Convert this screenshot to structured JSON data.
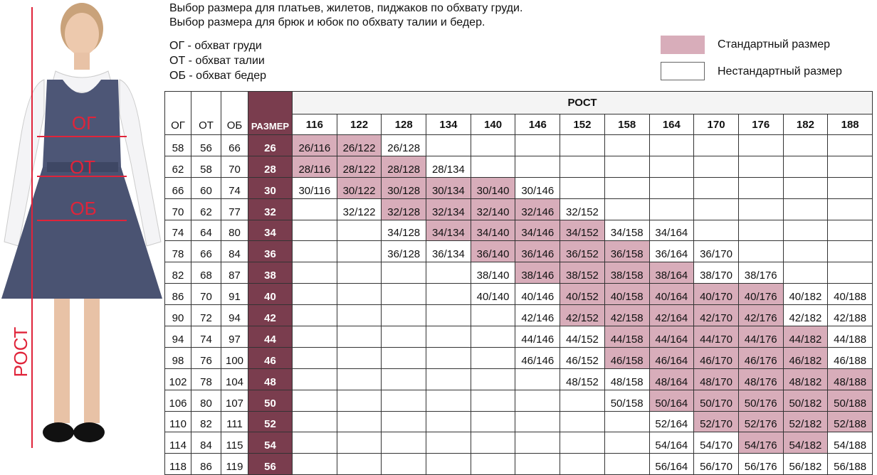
{
  "header": {
    "lines": [
      "Выбор размера для платьев, жилетов, пиджаков по обхвату груди.",
      "Выбор размера для брюк и юбок по обхвату талии и бедер."
    ],
    "abbreviations": [
      "ОГ - обхват груди",
      "ОТ - обхват талии",
      "ОБ - обхват бедер"
    ]
  },
  "legend": [
    {
      "label": "Стандартный размер",
      "color": "#d8adba"
    },
    {
      "label": "Нестандартный размер",
      "color": "#ffffff"
    }
  ],
  "figure_labels": {
    "chest": "ОГ",
    "waist": "ОТ",
    "hips": "ОБ",
    "height": "РОСТ"
  },
  "table": {
    "columns": [
      "ОГ",
      "ОТ",
      "ОБ",
      "РАЗМЕР"
    ],
    "size_color": "#7a3d4e",
    "height_title": "РОСТ",
    "heights": [
      "116",
      "122",
      "128",
      "134",
      "140",
      "146",
      "152",
      "158",
      "164",
      "170",
      "176",
      "182",
      "188"
    ],
    "rows": [
      {
        "measures": [
          "58",
          "56",
          "66"
        ],
        "size": "26",
        "cells": [
          {
            "label": "26/116",
            "standard": true
          },
          {
            "label": "26/122",
            "standard": true
          },
          {
            "label": "26/128",
            "standard": false
          },
          null,
          null,
          null,
          null,
          null,
          null,
          null,
          null,
          null,
          null
        ]
      },
      {
        "measures": [
          "62",
          "58",
          "70"
        ],
        "size": "28",
        "cells": [
          {
            "label": "28/116",
            "standard": true
          },
          {
            "label": "28/122",
            "standard": true
          },
          {
            "label": "28/128",
            "standard": true
          },
          {
            "label": "28/134",
            "standard": false
          },
          null,
          null,
          null,
          null,
          null,
          null,
          null,
          null,
          null
        ]
      },
      {
        "measures": [
          "66",
          "60",
          "74"
        ],
        "size": "30",
        "cells": [
          {
            "label": "30/116",
            "standard": false
          },
          {
            "label": "30/122",
            "standard": true
          },
          {
            "label": "30/128",
            "standard": true
          },
          {
            "label": "30/134",
            "standard": true
          },
          {
            "label": "30/140",
            "standard": true
          },
          {
            "label": "30/146",
            "standard": false
          },
          null,
          null,
          null,
          null,
          null,
          null,
          null
        ]
      },
      {
        "measures": [
          "70",
          "62",
          "77"
        ],
        "size": "32",
        "cells": [
          null,
          {
            "label": "32/122",
            "standard": false
          },
          {
            "label": "32/128",
            "standard": true
          },
          {
            "label": "32/134",
            "standard": true
          },
          {
            "label": "32/140",
            "standard": true
          },
          {
            "label": "32/146",
            "standard": true
          },
          {
            "label": "32/152",
            "standard": false
          },
          null,
          null,
          null,
          null,
          null,
          null
        ]
      },
      {
        "measures": [
          "74",
          "64",
          "80"
        ],
        "size": "34",
        "cells": [
          null,
          null,
          {
            "label": "34/128",
            "standard": false
          },
          {
            "label": "34/134",
            "standard": true
          },
          {
            "label": "34/140",
            "standard": true
          },
          {
            "label": "34/146",
            "standard": true
          },
          {
            "label": "34/152",
            "standard": true
          },
          {
            "label": "34/158",
            "standard": false
          },
          {
            "label": "34/164",
            "standard": false
          },
          null,
          null,
          null,
          null
        ]
      },
      {
        "measures": [
          "78",
          "66",
          "84"
        ],
        "size": "36",
        "cells": [
          null,
          null,
          {
            "label": "36/128",
            "standard": false
          },
          {
            "label": "36/134",
            "standard": false
          },
          {
            "label": "36/140",
            "standard": true
          },
          {
            "label": "36/146",
            "standard": true
          },
          {
            "label": "36/152",
            "standard": true
          },
          {
            "label": "36/158",
            "standard": true
          },
          {
            "label": "36/164",
            "standard": false
          },
          {
            "label": "36/170",
            "standard": false
          },
          null,
          null,
          null
        ]
      },
      {
        "measures": [
          "82",
          "68",
          "87"
        ],
        "size": "38",
        "cells": [
          null,
          null,
          null,
          null,
          {
            "label": "38/140",
            "standard": false
          },
          {
            "label": "38/146",
            "standard": true
          },
          {
            "label": "38/152",
            "standard": true
          },
          {
            "label": "38/158",
            "standard": true
          },
          {
            "label": "38/164",
            "standard": true
          },
          {
            "label": "38/170",
            "standard": false
          },
          {
            "label": "38/176",
            "standard": false
          },
          null,
          null
        ]
      },
      {
        "measures": [
          "86",
          "70",
          "91"
        ],
        "size": "40",
        "cells": [
          null,
          null,
          null,
          null,
          {
            "label": "40/140",
            "standard": false
          },
          {
            "label": "40/146",
            "standard": false
          },
          {
            "label": "40/152",
            "standard": true
          },
          {
            "label": "40/158",
            "standard": true
          },
          {
            "label": "40/164",
            "standard": true
          },
          {
            "label": "40/170",
            "standard": true
          },
          {
            "label": "40/176",
            "standard": true
          },
          {
            "label": "40/182",
            "standard": false
          },
          {
            "label": "40/188",
            "standard": false
          }
        ]
      },
      {
        "measures": [
          "90",
          "72",
          "94"
        ],
        "size": "42",
        "cells": [
          null,
          null,
          null,
          null,
          null,
          {
            "label": "42/146",
            "standard": false
          },
          {
            "label": "42/152",
            "standard": true
          },
          {
            "label": "42/158",
            "standard": true
          },
          {
            "label": "42/164",
            "standard": true
          },
          {
            "label": "42/170",
            "standard": true
          },
          {
            "label": "42/176",
            "standard": true
          },
          {
            "label": "42/182",
            "standard": false
          },
          {
            "label": "42/188",
            "standard": false
          }
        ]
      },
      {
        "measures": [
          "94",
          "74",
          "97"
        ],
        "size": "44",
        "cells": [
          null,
          null,
          null,
          null,
          null,
          {
            "label": "44/146",
            "standard": false
          },
          {
            "label": "44/152",
            "standard": false
          },
          {
            "label": "44/158",
            "standard": true
          },
          {
            "label": "44/164",
            "standard": true
          },
          {
            "label": "44/170",
            "standard": true
          },
          {
            "label": "44/176",
            "standard": true
          },
          {
            "label": "44/182",
            "standard": true
          },
          {
            "label": "44/188",
            "standard": false
          }
        ]
      },
      {
        "measures": [
          "98",
          "76",
          "100"
        ],
        "size": "46",
        "cells": [
          null,
          null,
          null,
          null,
          null,
          {
            "label": "46/146",
            "standard": false
          },
          {
            "label": "46/152",
            "standard": false
          },
          {
            "label": "46/158",
            "standard": true
          },
          {
            "label": "46/164",
            "standard": true
          },
          {
            "label": "46/170",
            "standard": true
          },
          {
            "label": "46/176",
            "standard": true
          },
          {
            "label": "46/182",
            "standard": true
          },
          {
            "label": "46/188",
            "standard": false
          }
        ]
      },
      {
        "measures": [
          "102",
          "78",
          "104"
        ],
        "size": "48",
        "cells": [
          null,
          null,
          null,
          null,
          null,
          null,
          {
            "label": "48/152",
            "standard": false
          },
          {
            "label": "48/158",
            "standard": false
          },
          {
            "label": "48/164",
            "standard": true
          },
          {
            "label": "48/170",
            "standard": true
          },
          {
            "label": "48/176",
            "standard": true
          },
          {
            "label": "48/182",
            "standard": true
          },
          {
            "label": "48/188",
            "standard": true
          }
        ]
      },
      {
        "measures": [
          "106",
          "80",
          "107"
        ],
        "size": "50",
        "cells": [
          null,
          null,
          null,
          null,
          null,
          null,
          null,
          {
            "label": "50/158",
            "standard": false
          },
          {
            "label": "50/164",
            "standard": true
          },
          {
            "label": "50/170",
            "standard": true
          },
          {
            "label": "50/176",
            "standard": true
          },
          {
            "label": "50/182",
            "standard": true
          },
          {
            "label": "50/188",
            "standard": true
          }
        ]
      },
      {
        "measures": [
          "110",
          "82",
          "111"
        ],
        "size": "52",
        "cells": [
          null,
          null,
          null,
          null,
          null,
          null,
          null,
          null,
          {
            "label": "52/164",
            "standard": false
          },
          {
            "label": "52/170",
            "standard": true
          },
          {
            "label": "52/176",
            "standard": true
          },
          {
            "label": "52/182",
            "standard": true
          },
          {
            "label": "52/188",
            "standard": true
          }
        ]
      },
      {
        "measures": [
          "114",
          "84",
          "115"
        ],
        "size": "54",
        "cells": [
          null,
          null,
          null,
          null,
          null,
          null,
          null,
          null,
          {
            "label": "54/164",
            "standard": false
          },
          {
            "label": "54/170",
            "standard": false
          },
          {
            "label": "54/176",
            "standard": true
          },
          {
            "label": "54/182",
            "standard": true
          },
          {
            "label": "54/188",
            "standard": false
          }
        ]
      },
      {
        "measures": [
          "118",
          "86",
          "119"
        ],
        "size": "56",
        "cells": [
          null,
          null,
          null,
          null,
          null,
          null,
          null,
          null,
          {
            "label": "56/164",
            "standard": false
          },
          {
            "label": "56/170",
            "standard": false
          },
          {
            "label": "56/176",
            "standard": false
          },
          {
            "label": "56/182",
            "standard": false
          },
          {
            "label": "56/188",
            "standard": false
          }
        ]
      }
    ]
  }
}
